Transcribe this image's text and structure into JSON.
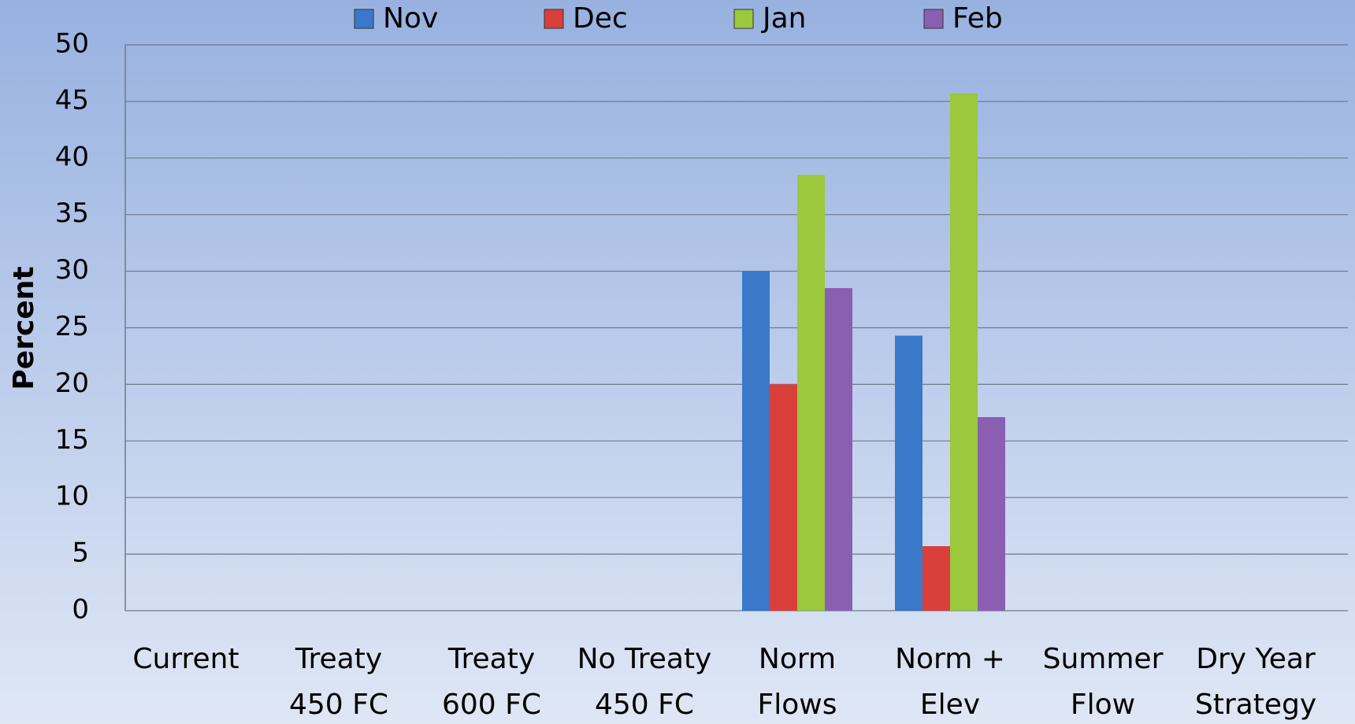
{
  "chart_data": {
    "type": "bar",
    "y_label": "Percent",
    "categories": [
      [
        "Current"
      ],
      [
        "Treaty",
        "450 FC"
      ],
      [
        "Treaty",
        "600 FC"
      ],
      [
        "No Treaty",
        "450 FC"
      ],
      [
        "Norm",
        "Flows"
      ],
      [
        "Norm +",
        "Elev"
      ],
      [
        "Summer",
        "Flow"
      ],
      [
        "Dry Year",
        "Strategy"
      ]
    ],
    "series": [
      {
        "name": "Nov",
        "color": "#3a78c9",
        "values": [
          0,
          0,
          0,
          0,
          30,
          24.3,
          0,
          0
        ]
      },
      {
        "name": "Dec",
        "color": "#d9403b",
        "values": [
          0,
          0,
          0,
          0,
          20,
          5.7,
          0,
          0
        ]
      },
      {
        "name": "Jan",
        "color": "#9bc83c",
        "values": [
          0,
          0,
          0,
          0,
          38.5,
          45.7,
          0,
          0
        ]
      },
      {
        "name": "Feb",
        "color": "#8a5fb2",
        "values": [
          0,
          0,
          0,
          0,
          28.5,
          17.1,
          0,
          0
        ]
      }
    ],
    "ylim": [
      0,
      50
    ],
    "yticks": [
      0,
      5,
      10,
      15,
      20,
      25,
      30,
      35,
      40,
      45,
      50
    ],
    "grid": true,
    "legend": "top"
  }
}
